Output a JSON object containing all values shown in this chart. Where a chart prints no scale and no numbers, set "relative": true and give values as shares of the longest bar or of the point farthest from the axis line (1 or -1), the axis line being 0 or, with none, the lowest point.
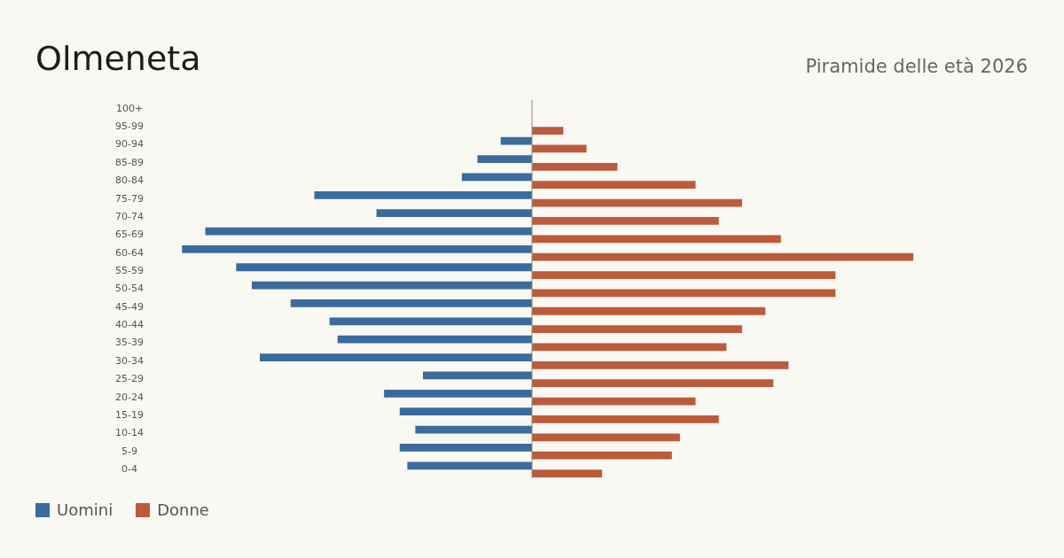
{
  "chart_data": {
    "type": "bar",
    "orientation": "horizontal",
    "relative": true,
    "title": "Olmeneta",
    "subtitle": "Piramide delle età 2026",
    "legend": "bottom left",
    "categories": [
      "100+",
      "95-99",
      "90-94",
      "85-89",
      "80-84",
      "75-79",
      "70-74",
      "65-69",
      "60-64",
      "55-59",
      "50-54",
      "45-49",
      "40-44",
      "35-39",
      "30-34",
      "25-29",
      "20-24",
      "15-19",
      "10-14",
      "5-9",
      "0-4"
    ],
    "series": [
      {
        "name": "Uomini",
        "color": "#3a6b9c",
        "values": [
          0,
          0,
          -0.082,
          -0.143,
          -0.184,
          -0.571,
          -0.408,
          -0.857,
          -0.918,
          -0.776,
          -0.735,
          -0.633,
          -0.531,
          -0.51,
          -0.714,
          -0.286,
          -0.388,
          -0.347,
          -0.306,
          -0.347,
          -0.327
        ]
      },
      {
        "name": "Donne",
        "color": "#bb5b3c",
        "values": [
          0,
          0.082,
          0.143,
          0.224,
          0.429,
          0.551,
          0.49,
          0.653,
          1,
          0.796,
          0.796,
          0.612,
          0.551,
          0.51,
          0.673,
          0.633,
          0.429,
          0.49,
          0.388,
          0.367,
          0.184
        ]
      }
    ]
  }
}
